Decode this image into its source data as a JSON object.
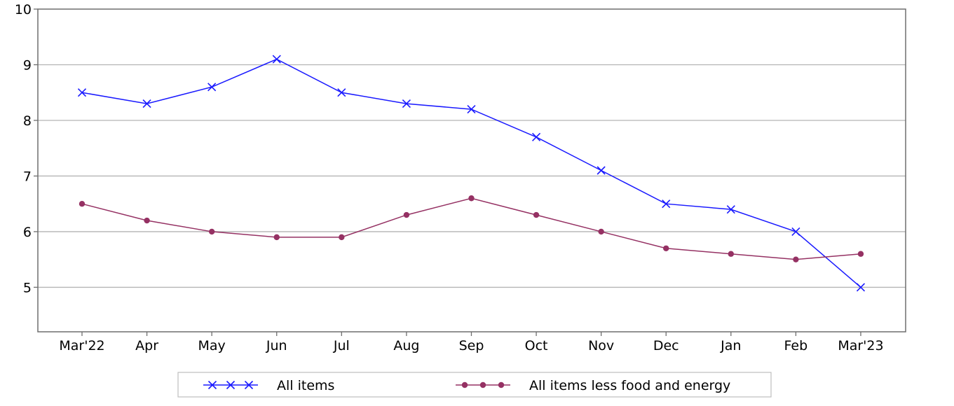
{
  "chart_data": {
    "type": "line",
    "title": "",
    "xlabel": "",
    "ylabel": "",
    "categories": [
      "Mar'22",
      "Apr",
      "May",
      "Jun",
      "Jul",
      "Aug",
      "Sep",
      "Oct",
      "Nov",
      "Dec",
      "Jan",
      "Feb",
      "Mar'23"
    ],
    "ylim": [
      4.2,
      10
    ],
    "yticks": [
      5,
      6,
      7,
      8,
      9,
      10
    ],
    "grid": "horizontal",
    "legend_position": "bottom",
    "series": [
      {
        "name": "All items",
        "marker": "x",
        "color": "#1a1aff",
        "values": [
          8.5,
          8.3,
          8.6,
          9.1,
          8.5,
          8.3,
          8.2,
          7.7,
          7.1,
          6.5,
          6.4,
          6.0,
          5.0
        ]
      },
      {
        "name": "All items less food and energy",
        "marker": "dot",
        "color": "#953163",
        "values": [
          6.5,
          6.2,
          6.0,
          5.9,
          5.9,
          6.3,
          6.6,
          6.3,
          6.0,
          5.7,
          5.6,
          5.5,
          5.6
        ]
      }
    ]
  }
}
